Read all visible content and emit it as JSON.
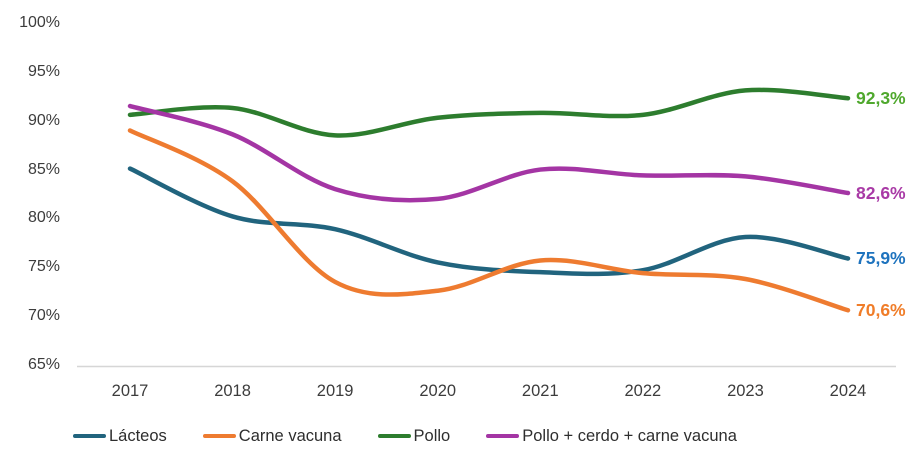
{
  "chart_data": {
    "type": "line",
    "title": "",
    "xlabel": "",
    "ylabel": "",
    "categories": [
      "2017",
      "2018",
      "2019",
      "2020",
      "2021",
      "2022",
      "2023",
      "2024"
    ],
    "series": [
      {
        "name": "Lácteos",
        "color": "#21647E",
        "label_color": "#1E73BE",
        "values": [
          85.1,
          80.2,
          78.9,
          75.5,
          74.5,
          74.7,
          78.1,
          75.9
        ],
        "end_label": "75,9%"
      },
      {
        "name": "Carne vacuna",
        "color": "#EE7B30",
        "label_color": "#F07D29",
        "values": [
          89.0,
          83.8,
          73.5,
          72.6,
          75.7,
          74.4,
          73.8,
          70.6
        ],
        "end_label": "70,6%"
      },
      {
        "name": "Pollo",
        "color": "#2D7D2E",
        "label_color": "#4FA82D",
        "values": [
          90.6,
          91.3,
          88.5,
          90.3,
          90.8,
          90.6,
          93.1,
          92.3
        ],
        "end_label": "92,3%"
      },
      {
        "name": "Pollo + cerdo + carne vacuna",
        "color": "#A435A4",
        "label_color": "#A93AA6",
        "values": [
          91.5,
          88.6,
          83.0,
          82.0,
          85.0,
          84.4,
          84.3,
          82.6
        ],
        "end_label": "82,6%"
      }
    ],
    "y_ticks": [
      "100%",
      "95%",
      "90%",
      "85%",
      "80%",
      "75%",
      "70%",
      "65%"
    ],
    "y_tick_values": [
      100,
      95,
      90,
      85,
      80,
      75,
      70,
      65
    ],
    "ylim": [
      65,
      100
    ],
    "grid": false,
    "smooth": true,
    "legend_position": "bottom",
    "axis_line_color": "#D6D6D6"
  }
}
